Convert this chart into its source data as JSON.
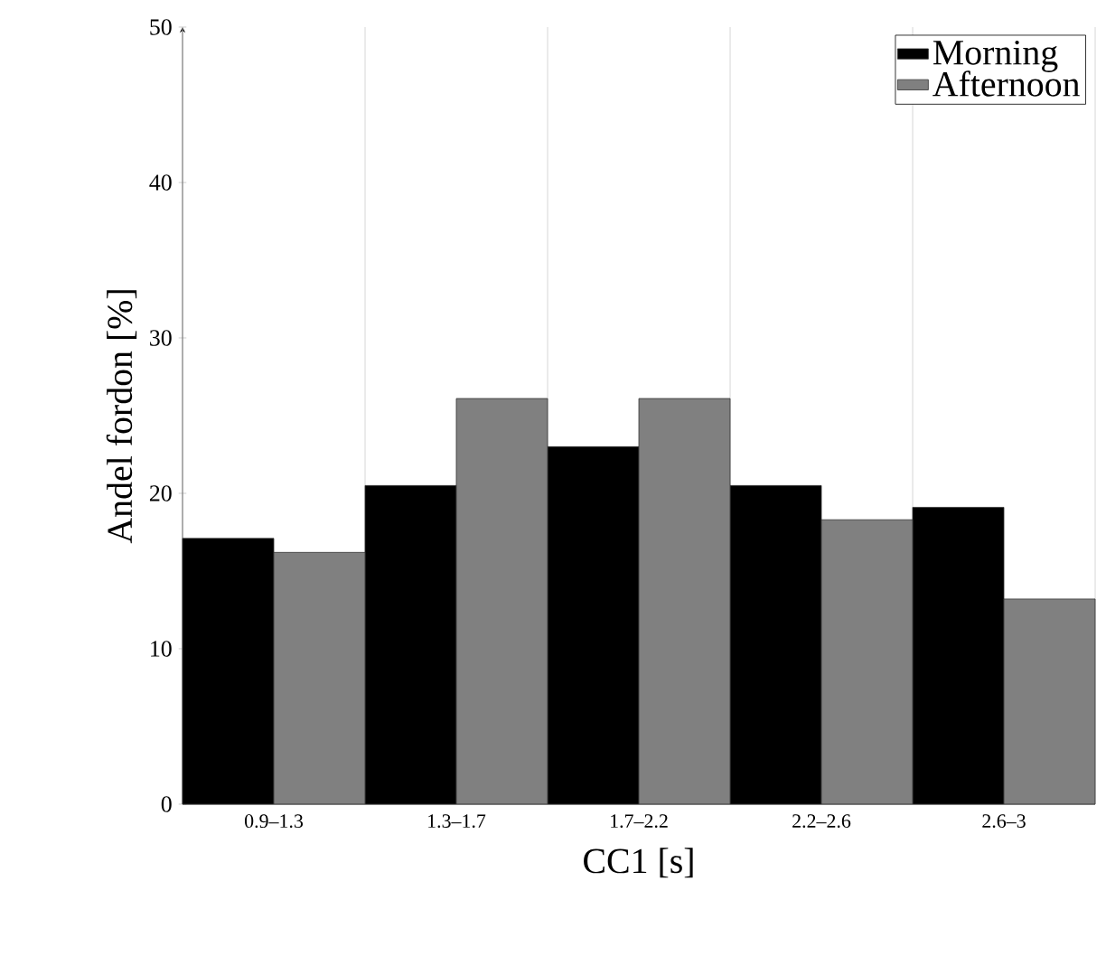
{
  "chart_data": {
    "type": "bar",
    "xlabel": "CC1 [s]",
    "ylabel": "Andel fordon [%]",
    "categories": [
      "0.9–1.3",
      "1.3–1.7",
      "1.7–2.2",
      "2.2–2.6",
      "2.6–3"
    ],
    "series": [
      {
        "name": "Morning",
        "color": "#000000",
        "values": [
          17.1,
          20.5,
          23.0,
          20.5,
          19.1
        ]
      },
      {
        "name": "Afternoon",
        "color": "#808080",
        "values": [
          16.2,
          26.1,
          26.1,
          18.3,
          13.2
        ]
      }
    ],
    "ylim": [
      0,
      50
    ],
    "yticks": [
      0,
      10,
      20,
      30,
      40,
      50
    ],
    "grid": "x",
    "legend": "top right"
  }
}
